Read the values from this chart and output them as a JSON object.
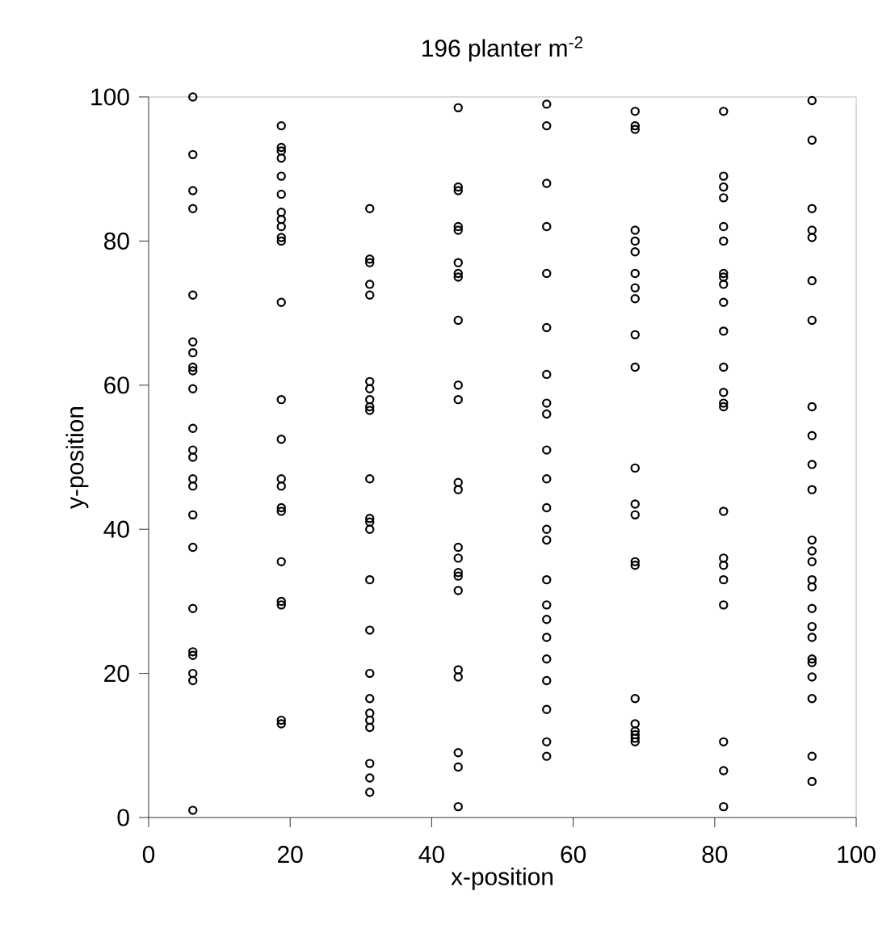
{
  "chart_data": {
    "type": "scatter",
    "title": "196 planter m$^{-2}$",
    "xlabel": "x-position",
    "ylabel": "y-position",
    "xlim": [
      0,
      100
    ],
    "ylim": [
      0,
      100
    ],
    "xticks": [
      0,
      20,
      40,
      60,
      80,
      100
    ],
    "yticks": [
      0,
      20,
      40,
      60,
      80,
      100
    ],
    "marker": "circle",
    "series": [
      {
        "color": "#000000",
        "x": [
          6.25,
          6.25,
          6.25,
          6.25,
          6.25,
          6.25,
          6.25,
          6.25,
          6.25,
          6.25,
          6.25,
          6.25,
          6.25,
          6.25,
          6.25,
          6.25,
          6.25,
          6.25,
          6.25,
          6.25,
          6.25,
          6.25,
          6.25,
          18.75,
          18.75,
          18.75,
          18.75,
          18.75,
          18.75,
          18.75,
          18.75,
          18.75,
          18.75,
          18.75,
          18.75,
          18.75,
          18.75,
          18.75,
          18.75,
          18.75,
          18.75,
          18.75,
          18.75,
          18.75,
          18.75,
          18.75,
          31.25,
          31.25,
          31.25,
          31.25,
          31.25,
          31.25,
          31.25,
          31.25,
          31.25,
          31.25,
          31.25,
          31.25,
          31.25,
          31.25,
          31.25,
          31.25,
          31.25,
          31.25,
          31.25,
          31.25,
          31.25,
          31.25,
          31.25,
          31.25,
          43.75,
          43.75,
          43.75,
          43.75,
          43.75,
          43.75,
          43.75,
          43.75,
          43.75,
          43.75,
          43.75,
          43.75,
          43.75,
          43.75,
          43.75,
          43.75,
          43.75,
          43.75,
          43.75,
          43.75,
          43.75,
          43.75,
          43.75,
          56.25,
          56.25,
          56.25,
          56.25,
          56.25,
          56.25,
          56.25,
          56.25,
          56.25,
          56.25,
          56.25,
          56.25,
          56.25,
          56.25,
          56.25,
          56.25,
          56.25,
          56.25,
          56.25,
          56.25,
          56.25,
          56.25,
          56.25,
          68.75,
          68.75,
          68.75,
          68.75,
          68.75,
          68.75,
          68.75,
          68.75,
          68.75,
          68.75,
          68.75,
          68.75,
          68.75,
          68.75,
          68.75,
          68.75,
          68.75,
          68.75,
          68.75,
          68.75,
          68.75,
          68.75,
          81.25,
          81.25,
          81.25,
          81.25,
          81.25,
          81.25,
          81.25,
          81.25,
          81.25,
          81.25,
          81.25,
          81.25,
          81.25,
          81.25,
          81.25,
          81.25,
          81.25,
          81.25,
          81.25,
          81.25,
          81.25,
          81.25,
          81.25,
          93.75,
          93.75,
          93.75,
          93.75,
          93.75,
          93.75,
          93.75,
          93.75,
          93.75,
          93.75,
          93.75,
          93.75,
          93.75,
          93.75,
          93.75,
          93.75,
          93.75,
          93.75,
          93.75,
          93.75,
          93.75,
          93.75,
          93.75,
          93.75,
          93.75
        ],
        "values": [
          100,
          92,
          87,
          84.5,
          72.5,
          66,
          64.5,
          62.5,
          62,
          59.5,
          54,
          51,
          50,
          47,
          46,
          42,
          37.5,
          29,
          23,
          22.5,
          20,
          19,
          1,
          96,
          93,
          92.5,
          91.5,
          89,
          86.5,
          84,
          83,
          82,
          80.5,
          80,
          71.5,
          58,
          52.5,
          47,
          46,
          43,
          42.5,
          35.5,
          30,
          29.5,
          13.5,
          13,
          84.5,
          77.5,
          77,
          74,
          72.5,
          60.5,
          59.5,
          58,
          57,
          56.5,
          47,
          41.5,
          41,
          40,
          33,
          26,
          20,
          16.5,
          14.5,
          13.5,
          12.5,
          7.5,
          5.5,
          3.5,
          98.5,
          87.5,
          87,
          82,
          81.5,
          77,
          75.5,
          75,
          69,
          60,
          58,
          46.5,
          45.5,
          37.5,
          36,
          34,
          33.5,
          31.5,
          20.5,
          19.5,
          9,
          7,
          1.5,
          99,
          96,
          88,
          82,
          75.5,
          68,
          61.5,
          57.5,
          56,
          51,
          47,
          43,
          40,
          38.5,
          33,
          29.5,
          27.5,
          25,
          22,
          19,
          15,
          10.5,
          8.5,
          98,
          96,
          95.5,
          81.5,
          80,
          78.5,
          75.5,
          73.5,
          72,
          67,
          62.5,
          48.5,
          43.5,
          42,
          35.5,
          35,
          16.5,
          13,
          12,
          11.5,
          11,
          10.5,
          98,
          89,
          87.5,
          86,
          82,
          80,
          75.5,
          75,
          74,
          71.5,
          67.5,
          62.5,
          59,
          57.5,
          57,
          42.5,
          36,
          35,
          33,
          29.5,
          10.5,
          6.5,
          1.5,
          99.5,
          94,
          84.5,
          81.5,
          80.5,
          74.5,
          69,
          57,
          53,
          49,
          45.5,
          38.5,
          37,
          35.5,
          33,
          32,
          29,
          26.5,
          25,
          22,
          21.5,
          19.5,
          16.5,
          8.5,
          5
        ]
      }
    ]
  }
}
